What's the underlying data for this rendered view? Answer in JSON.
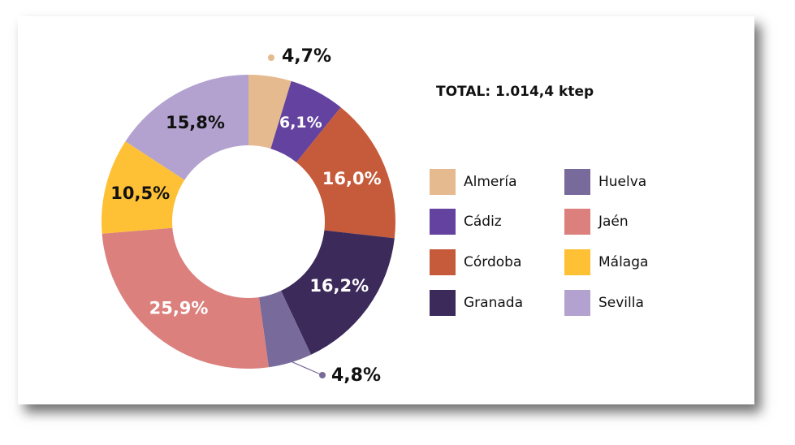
{
  "total_label": "TOTAL: 1.014,4 ktep",
  "chart_data": {
    "type": "pie",
    "title": "",
    "unit": "%",
    "categories": [
      "Almería",
      "Cádiz",
      "Córdoba",
      "Granada",
      "Huelva",
      "Jaén",
      "Málaga",
      "Sevilla"
    ],
    "values": [
      4.7,
      6.1,
      16.0,
      16.2,
      4.8,
      25.9,
      10.5,
      15.8
    ],
    "value_labels": [
      "4,7%",
      "6,1%",
      "16,0%",
      "16,2%",
      "4,8%",
      "25,9%",
      "10,5%",
      "15,8%"
    ],
    "colors": [
      "#E6BA8F",
      "#6342A0",
      "#C65B3B",
      "#3B2A5A",
      "#786A9B",
      "#DB807D",
      "#FEC135",
      "#B3A2CF"
    ],
    "label_colors": [
      "#111111",
      "#ffffff",
      "#ffffff",
      "#ffffff",
      "#111111",
      "#ffffff",
      "#111111",
      "#111111"
    ],
    "legend": [
      "Almería",
      "Huelva",
      "Cádiz",
      "Jaén",
      "Córdoba",
      "Málaga",
      "Granada",
      "Sevilla"
    ],
    "legend_placement": "right"
  }
}
